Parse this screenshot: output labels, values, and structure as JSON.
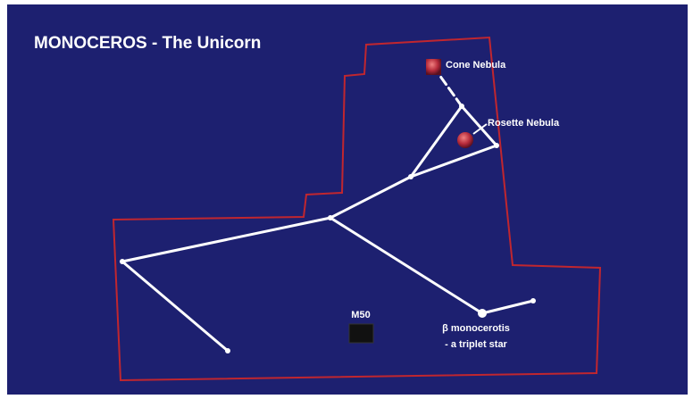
{
  "title": "MONOCEROS - The Unicorn",
  "labels": {
    "cone": "Cone Nebula",
    "rosette": "Rosette Nebula",
    "m50": "M50",
    "beta": "β monocerotis",
    "beta_note": "- a triplet star"
  }
}
